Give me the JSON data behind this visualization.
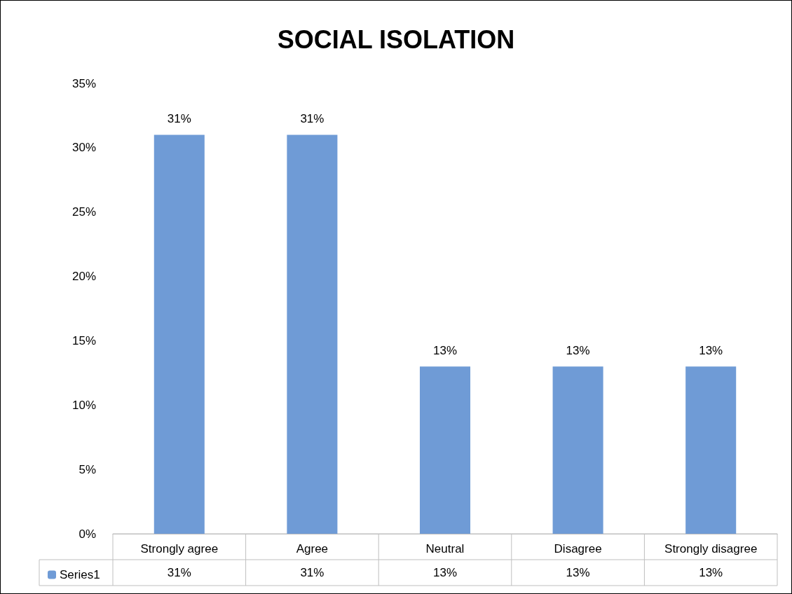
{
  "chart_data": {
    "type": "bar",
    "title": "SOCIAL ISOLATION",
    "categories": [
      "Strongly agree",
      "Agree",
      "Neutral",
      "Disagree",
      "Strongly disagree"
    ],
    "series": [
      {
        "name": "Series1",
        "color": "#6f9bd6",
        "values": [
          31,
          31,
          13,
          13,
          13
        ],
        "value_labels": [
          "31%",
          "31%",
          "13%",
          "13%",
          "13%"
        ]
      }
    ],
    "ylim": [
      0,
      35
    ],
    "yticks": [
      {
        "value": 0,
        "label": "0%"
      },
      {
        "value": 5,
        "label": "5%"
      },
      {
        "value": 10,
        "label": "10%"
      },
      {
        "value": 15,
        "label": "15%"
      },
      {
        "value": 20,
        "label": "20%"
      },
      {
        "value": 25,
        "label": "25%"
      },
      {
        "value": 30,
        "label": "30%"
      },
      {
        "value": 35,
        "label": "35%"
      }
    ],
    "grid": false,
    "legend": "bottom left",
    "data_labels": true
  }
}
